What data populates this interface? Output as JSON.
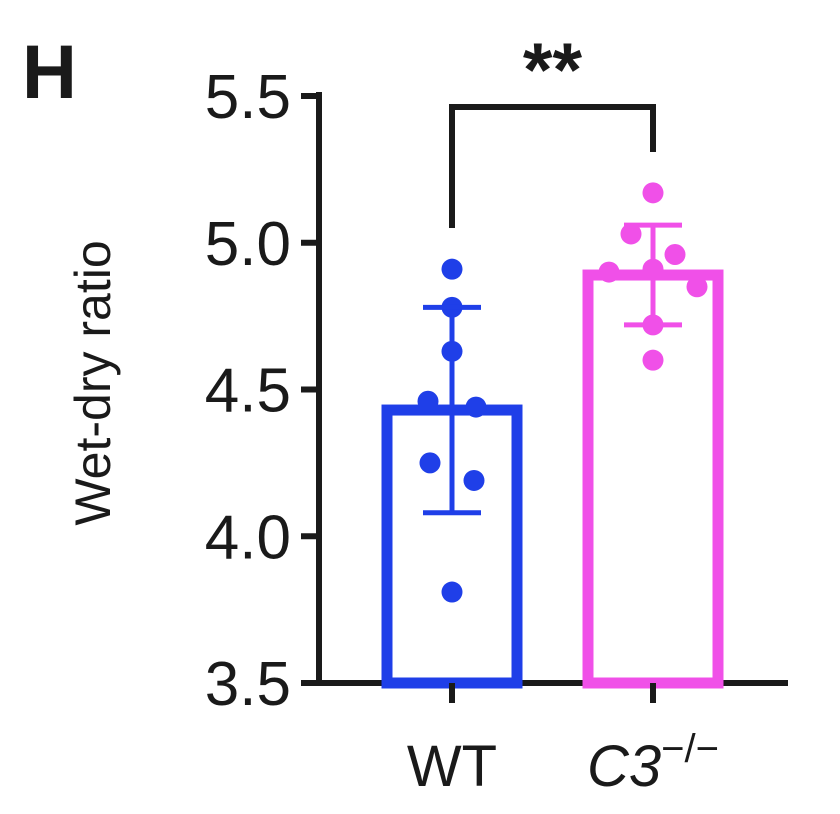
{
  "panel_label": "H",
  "chart_data": {
    "type": "bar",
    "ylabel": "Wet-dry ratio",
    "ylim": [
      3.5,
      5.5
    ],
    "yticks": [
      "3.5",
      "4.0",
      "4.5",
      "5.0",
      "5.5"
    ],
    "categories": [
      {
        "name": "WT",
        "gene": "",
        "sup": ""
      },
      {
        "name": "",
        "gene": "C3",
        "sup": "−/−"
      }
    ],
    "series": [
      {
        "mean": 4.43,
        "sd": 0.35,
        "points": [
          4.91,
          4.78,
          4.63,
          4.46,
          4.44,
          4.25,
          4.19,
          3.81
        ],
        "color": "#1f3fe8"
      },
      {
        "mean": 4.89,
        "sd": 0.17,
        "points": [
          5.17,
          5.03,
          4.96,
          4.91,
          4.9,
          4.85,
          4.72,
          4.6
        ],
        "color": "#f050e8"
      }
    ],
    "significance": "**"
  }
}
